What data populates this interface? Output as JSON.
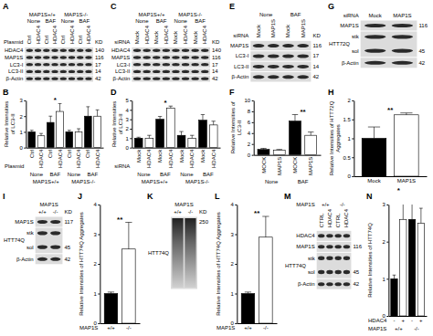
{
  "chart_data": [
    {
      "panel": "B",
      "type": "bar",
      "y_label": "Relative Intensities of LC3-II",
      "categories": [
        "Ctrl",
        "HDAC4",
        "Ctrl",
        "HDAC4",
        "Ctrl",
        "HDAC4",
        "Ctrl",
        "HDAC4"
      ],
      "x_row_label": "Plasmid",
      "x_groups": [
        {
          "spans": [
            {
              "text": "None",
              "from": 0,
              "to": 1
            },
            {
              "text": "BAF",
              "from": 2,
              "to": 3
            },
            {
              "text": "None",
              "from": 4,
              "to": 5
            },
            {
              "text": "BAF",
              "from": 6,
              "to": 7
            }
          ]
        },
        {
          "spans": [
            {
              "text": "MAP1S+/+",
              "from": 0,
              "to": 3
            },
            {
              "text": "MAP1S-/-",
              "from": 4,
              "to": 7
            }
          ]
        }
      ],
      "values": [
        1.0,
        0.75,
        1.6,
        2.3,
        1.0,
        1.0,
        2.0,
        2.0
      ],
      "errors": [
        0.1,
        0.15,
        0.4,
        0.5,
        0.1,
        0.2,
        0.6,
        0.4
      ],
      "colors": [
        "#000000",
        "#ffffff",
        "#000000",
        "#ffffff",
        "#000000",
        "#ffffff",
        "#000000",
        "#ffffff"
      ],
      "ylim": [
        0,
        3
      ],
      "yticks": [
        0,
        1,
        2,
        3
      ],
      "annotations": [
        {
          "text": "*",
          "from": 2,
          "to": 3
        }
      ]
    },
    {
      "panel": "D",
      "type": "bar",
      "y_label": "Relative Intensities of LC3-II",
      "categories": [
        "Mock",
        "HDAC4",
        "Mock",
        "HDAC4",
        "Mock",
        "HDAC4",
        "Mock",
        "HDAC4"
      ],
      "x_row_label": "siRNA",
      "x_groups": [
        {
          "spans": [
            {
              "text": "None",
              "from": 0,
              "to": 1
            },
            {
              "text": "BAF",
              "from": 2,
              "to": 3
            },
            {
              "text": "None",
              "from": 4,
              "to": 5
            },
            {
              "text": "BAF",
              "from": 6,
              "to": 7
            }
          ]
        },
        {
          "spans": [
            {
              "text": "MAP1S+/+",
              "from": 0,
              "to": 3
            },
            {
              "text": "MAP1S-/-",
              "from": 4,
              "to": 7
            }
          ]
        }
      ],
      "values": [
        1.0,
        1.0,
        3.0,
        4.2,
        1.3,
        1.0,
        2.9,
        2.4
      ],
      "errors": [
        0.1,
        0.3,
        0.3,
        0.2,
        0.4,
        0.3,
        0.6,
        0.4
      ],
      "colors": [
        "#000000",
        "#ffffff",
        "#000000",
        "#ffffff",
        "#000000",
        "#ffffff",
        "#000000",
        "#ffffff"
      ],
      "ylim": [
        0,
        5
      ],
      "yticks": [
        0,
        1,
        2,
        3,
        4,
        5
      ],
      "annotations": [
        {
          "text": "*",
          "from": 2,
          "to": 3
        }
      ]
    },
    {
      "panel": "F",
      "type": "bar",
      "y_label": "Relative Intensities of LC3-II",
      "categories": [
        "MOCK",
        "MAP1S",
        "MOCK",
        "MAP1S"
      ],
      "x_groups": [
        {
          "spans": [
            {
              "text": "None",
              "from": 0,
              "to": 1
            },
            {
              "text": "BAF",
              "from": 2,
              "to": 3
            }
          ]
        }
      ],
      "values": [
        1.0,
        0.9,
        6.2,
        3.6
      ],
      "errors": [
        0.2,
        0.1,
        1.2,
        0.6
      ],
      "colors": [
        "#000000",
        "#ffffff",
        "#000000",
        "#ffffff"
      ],
      "ylim": [
        0,
        10
      ],
      "yticks": [
        0,
        2,
        4,
        6,
        8,
        10
      ],
      "annotations": [
        {
          "text": "**",
          "from": 2,
          "to": 3
        }
      ]
    },
    {
      "panel": "H",
      "type": "bar",
      "y_label": "Relative Intensities of HTT72Q Aggregates",
      "categories": [
        "Mock",
        "MAP1S"
      ],
      "values": [
        1.0,
        1.62
      ],
      "errors": [
        0.3,
        0.05
      ],
      "colors": [
        "#000000",
        "#ffffff"
      ],
      "ylim": [
        0,
        2
      ],
      "yticks": [
        0,
        0.5,
        1,
        1.5,
        2
      ],
      "annotations": [
        {
          "text": "**",
          "from": 0,
          "to": 1
        }
      ]
    },
    {
      "panel": "J",
      "type": "bar",
      "y_label": "Relative Intensities of HTT74Q Aggregates",
      "categories": [
        "+/+",
        "-/-"
      ],
      "x_row_label": "MAP1S",
      "values": [
        1.0,
        2.5
      ],
      "errors": [
        0.05,
        0.9
      ],
      "colors": [
        "#000000",
        "#ffffff"
      ],
      "ylim": [
        0,
        4
      ],
      "yticks": [
        0,
        1,
        2,
        3,
        4
      ],
      "annotations": [
        {
          "text": "**",
          "from": 0,
          "to": 1
        }
      ]
    },
    {
      "panel": "L",
      "type": "bar",
      "y_label": "Relative Intensities of HTT74Q Aggregates",
      "categories": [
        "+/+",
        "-/-"
      ],
      "x_row_label": "MAP1S",
      "values": [
        1.0,
        2.9
      ],
      "errors": [
        0.05,
        0.7
      ],
      "colors": [
        "#000000",
        "#ffffff"
      ],
      "ylim": [
        0,
        4
      ],
      "yticks": [
        0,
        1,
        2,
        3,
        4
      ],
      "annotations": [
        {
          "text": "**",
          "from": 0,
          "to": 1
        }
      ]
    },
    {
      "panel": "N",
      "type": "bar",
      "y_label": "Relative Intensities of HTT74Q",
      "categories": [
        "-",
        "+",
        "-",
        "+"
      ],
      "x_row_label": "HDAC4",
      "x_groups": [
        {
          "label": "MAP1S",
          "spans": [
            {
              "text": "+/+",
              "from": 0,
              "to": 1
            },
            {
              "text": "-/-",
              "from": 2,
              "to": 3
            }
          ]
        }
      ],
      "values": [
        1.0,
        2.6,
        2.6,
        2.5
      ],
      "errors": [
        0.1,
        0.7,
        0.5,
        0.4
      ],
      "colors": [
        "#000000",
        "#ffffff",
        "#000000",
        "#ffffff"
      ],
      "ylim": [
        0,
        3
      ],
      "yticks": [
        0,
        1,
        2,
        3
      ],
      "annotations": [
        {
          "text": "*",
          "from": 0,
          "to": 1
        }
      ]
    }
  ],
  "blots": [
    {
      "panel": "A",
      "headers": [
        {
          "spans": [
            {
              "text": "MAP1S+/+",
              "from": 0,
              "to": 3
            },
            {
              "text": "MAP1S-/-",
              "from": 4,
              "to": 7
            }
          ]
        },
        {
          "spans": [
            {
              "text": "None",
              "from": 0,
              "to": 1
            },
            {
              "text": "BAF",
              "from": 2,
              "to": 3
            },
            {
              "text": "None",
              "from": 4,
              "to": 5
            },
            {
              "text": "BAF",
              "from": 6,
              "to": 7
            }
          ]
        }
      ],
      "lane_title": "Plasmid",
      "lanes": [
        "Ctrl",
        "HDAC4",
        "Ctrl",
        "HDAC4",
        "Ctrl",
        "HDAC4",
        "Ctrl",
        "HDAC4"
      ],
      "kd_header": "KD",
      "rows": [
        {
          "label": "HDAC4",
          "kd": 140
        },
        {
          "label": "MAP1S",
          "kd": 116
        },
        {
          "label": "LC3-I",
          "kd": 17
        },
        {
          "label": "LC3-II",
          "kd": 14
        },
        {
          "label": "β-Actin",
          "kd": 42
        }
      ]
    },
    {
      "panel": "C",
      "headers": [
        {
          "spans": [
            {
              "text": "MAP1S+/+",
              "from": 0,
              "to": 3
            },
            {
              "text": "MAP1S-/-",
              "from": 4,
              "to": 7
            }
          ]
        },
        {
          "spans": [
            {
              "text": "None",
              "from": 0,
              "to": 1
            },
            {
              "text": "BAF",
              "from": 2,
              "to": 3
            },
            {
              "text": "None",
              "from": 4,
              "to": 5
            },
            {
              "text": "BAF",
              "from": 6,
              "to": 7
            }
          ]
        }
      ],
      "lane_title": "siRNA",
      "lanes": [
        "Mock",
        "HDAC4",
        "Mock",
        "HDAC4",
        "Mock",
        "HDAC4",
        "Mock",
        "HDAC4"
      ],
      "kd_header": "KD",
      "rows": [
        {
          "label": "HDAC4",
          "kd": 140
        },
        {
          "label": "MAP1S",
          "kd": 116
        },
        {
          "label": "LC3-I",
          "kd": 17
        },
        {
          "label": "LC3-II",
          "kd": 14
        },
        {
          "label": "β-Actin",
          "kd": 42
        }
      ]
    },
    {
      "panel": "E",
      "headers": [
        {
          "spans": [
            {
              "text": "None",
              "from": 0,
              "to": 1
            },
            {
              "text": "BAF",
              "from": 2,
              "to": 3
            }
          ]
        }
      ],
      "lane_title": "siRNA",
      "lanes": [
        "Mock",
        "MAP1S",
        "Mock",
        "MAP1S"
      ],
      "kd_header": "KD",
      "rows": [
        {
          "label": "MAP1S",
          "kd": 116
        },
        {
          "label": "LC3-I",
          "kd": 17
        },
        {
          "label": "LC3-II",
          "kd": 14
        },
        {
          "label": "β-Actin",
          "kd": 42
        }
      ]
    },
    {
      "panel": "G",
      "lane_title": "siRNA",
      "lanes": [
        "Mock",
        "MAP1S"
      ],
      "rows": [
        {
          "label": "MAP1S",
          "kd": 116
        },
        {
          "label": "HTT72Q",
          "sub": [
            "stk",
            "sol"
          ],
          "kd": 45
        },
        {
          "label": "β-Actin",
          "kd": 42
        }
      ]
    },
    {
      "panel": "I",
      "headers": [
        {
          "spans": [
            {
              "text": "MAP1S",
              "from": 0,
              "to": 1
            }
          ]
        }
      ],
      "lanes": [
        "+/+",
        "-/-"
      ],
      "kd_header": "KD",
      "rows": [
        {
          "label": "MAP1S",
          "kd": 117
        },
        {
          "label": "HTT74Q",
          "sub": [
            "stk",
            "sol"
          ],
          "kd": 45
        },
        {
          "label": "β-Actin",
          "kd": 42
        }
      ]
    },
    {
      "panel": "K",
      "headers": [
        {
          "spans": [
            {
              "text": "MAP1S",
              "from": 0,
              "to": 1
            }
          ]
        }
      ],
      "lanes": [
        "+/+",
        "-/-"
      ],
      "kd_header": "KD",
      "rows": [
        {
          "label": "HTT74Q",
          "kd": 250,
          "style": "smear"
        }
      ]
    },
    {
      "panel": "M",
      "headers": [
        {
          "label": "MAP1S",
          "spans": [
            {
              "text": "+/+",
              "from": 0,
              "to": 1
            },
            {
              "text": "-/-",
              "from": 2,
              "to": 3
            }
          ]
        }
      ],
      "lanes": [
        "CTRL",
        "HDAC4",
        "CTRL",
        "HDAC4"
      ],
      "rows": [
        {
          "label": "HDAC4"
        },
        {
          "label": "MAP1S",
          "kd": 116
        },
        {
          "label": "HTT74Q",
          "sub": [
            "stk",
            "sol"
          ],
          "kd": 45
        },
        {
          "label": "β-Actin",
          "kd": 42
        }
      ]
    }
  ]
}
